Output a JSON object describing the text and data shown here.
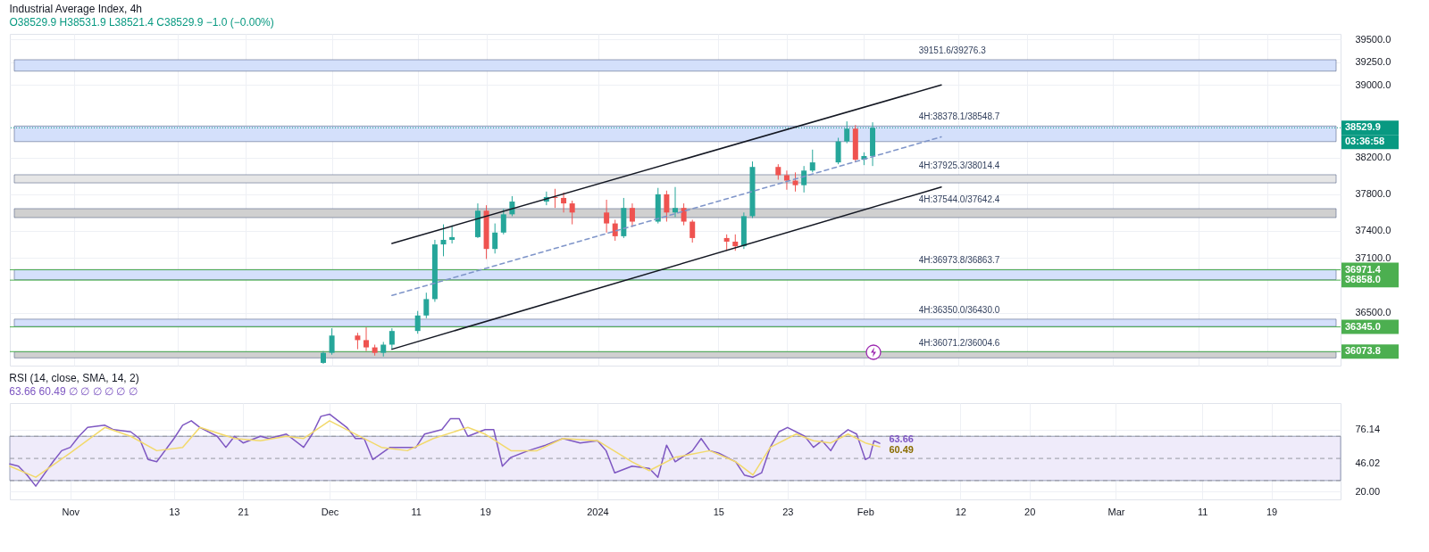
{
  "chart_data": [
    {
      "type": "candlestick",
      "title": "Industrial Average Index, 4h",
      "subtitle": "O38529.9  H38531.9  L38521.4  C38529.9  −1.0 (−0.00%)",
      "x": [
        "2023-11-30",
        "2023-12-01",
        "2023-12-04",
        "2023-12-05",
        "2023-12-06",
        "2023-12-07",
        "2023-12-08",
        "2023-12-11",
        "2023-12-12",
        "2023-12-13",
        "2023-12-14",
        "2023-12-15",
        "2023-12-18",
        "2023-12-19",
        "2023-12-20",
        "2023-12-21",
        "2023-12-22",
        "2023-12-26",
        "2023-12-27",
        "2023-12-28",
        "2023-12-29",
        "2024-01-02",
        "2024-01-03",
        "2024-01-04",
        "2024-01-05",
        "2024-01-08",
        "2024-01-09",
        "2024-01-10",
        "2024-01-11",
        "2024-01-12",
        "2024-01-16",
        "2024-01-17",
        "2024-01-18",
        "2024-01-19",
        "2024-01-22",
        "2024-01-23",
        "2024-01-24",
        "2024-01-25",
        "2024-01-26",
        "2024-01-29",
        "2024-01-30",
        "2024-01-31",
        "2024-02-01",
        "2024-02-02"
      ],
      "ohlc": [
        [
          35950,
          36080,
          35940,
          36060
        ],
        [
          36060,
          36330,
          36040,
          36250
        ],
        [
          36250,
          36280,
          36100,
          36200
        ],
        [
          36200,
          36340,
          36080,
          36120
        ],
        [
          36120,
          36150,
          36030,
          36060
        ],
        [
          36060,
          36180,
          36020,
          36150
        ],
        [
          36150,
          36330,
          36100,
          36300
        ],
        [
          36300,
          36520,
          36270,
          36470
        ],
        [
          36470,
          36720,
          36440,
          36650
        ],
        [
          36650,
          37300,
          36620,
          37250
        ],
        [
          37250,
          37470,
          37120,
          37300
        ],
        [
          37300,
          37460,
          37260,
          37330
        ],
        [
          37330,
          37700,
          37320,
          37620
        ],
        [
          37620,
          37680,
          37090,
          37200
        ],
        [
          37200,
          37480,
          37150,
          37380
        ],
        [
          37380,
          37640,
          37360,
          37580
        ],
        [
          37580,
          37780,
          37560,
          37720
        ],
        [
          37720,
          37830,
          37680,
          37770
        ],
        [
          37770,
          37860,
          37650,
          37760
        ],
        [
          37760,
          37820,
          37600,
          37700
        ],
        [
          37700,
          37730,
          37470,
          37600
        ],
        [
          37600,
          37740,
          37380,
          37480
        ],
        [
          37480,
          37520,
          37290,
          37340
        ],
        [
          37340,
          37760,
          37320,
          37650
        ],
        [
          37650,
          37700,
          37440,
          37500
        ],
        [
          37500,
          37870,
          37480,
          37800
        ],
        [
          37800,
          37840,
          37500,
          37600
        ],
        [
          37600,
          37880,
          37550,
          37650
        ],
        [
          37650,
          37700,
          37460,
          37500
        ],
        [
          37500,
          37520,
          37270,
          37320
        ],
        [
          37320,
          37360,
          37180,
          37280
        ],
        [
          37280,
          37360,
          37180,
          37230
        ],
        [
          37230,
          37600,
          37200,
          37560
        ],
        [
          37560,
          38160,
          37540,
          38100
        ],
        [
          38100,
          38130,
          37960,
          38010
        ],
        [
          38010,
          38060,
          37850,
          37950
        ],
        [
          37950,
          38040,
          37830,
          37900
        ],
        [
          37900,
          38110,
          37820,
          38060
        ],
        [
          38060,
          38290,
          38040,
          38150
        ],
        [
          38150,
          38420,
          38130,
          38380
        ],
        [
          38380,
          38600,
          38360,
          38520
        ],
        [
          38520,
          38560,
          38150,
          38180
        ],
        [
          38180,
          38260,
          38120,
          38220
        ],
        [
          38220,
          38590,
          38110,
          38529.9
        ]
      ],
      "colors": [
        "#26a69a",
        "#26a69a",
        "#ef5350",
        "#ef5350",
        "#ef5350",
        "#26a69a",
        "#26a69a",
        "#26a69a",
        "#26a69a",
        "#26a69a",
        "#26a69a",
        "#26a69a",
        "#26a69a",
        "#ef5350",
        "#26a69a",
        "#26a69a",
        "#26a69a",
        "#26a69a",
        "#ef5350",
        "#ef5350",
        "#ef5350",
        "#ef5350",
        "#ef5350",
        "#26a69a",
        "#ef5350",
        "#26a69a",
        "#ef5350",
        "#26a69a",
        "#ef5350",
        "#ef5350",
        "#ef5350",
        "#ef5350",
        "#26a69a",
        "#26a69a",
        "#ef5350",
        "#ef5350",
        "#ef5350",
        "#26a69a",
        "#26a69a",
        "#26a69a",
        "#26a69a",
        "#ef5350",
        "#26a69a",
        "#26a69a"
      ],
      "series": [
        {
          "type": "line",
          "color": "#131722",
          "line_style": "solid",
          "x": [
            "2023-12-08",
            "2024-02-10"
          ],
          "values": [
            37260,
            39000
          ]
        },
        {
          "type": "line",
          "color": "#131722",
          "line_style": "solid",
          "x": [
            "2023-12-08",
            "2024-02-10"
          ],
          "values": [
            36100,
            37880
          ]
        },
        {
          "type": "line",
          "color": "#7f95c9",
          "line_style": "dashed",
          "x": [
            "2023-12-08",
            "2024-02-10"
          ],
          "values": [
            36690,
            38430
          ]
        }
      ],
      "bands": [
        {
          "axis": "y",
          "from": 39151.6,
          "to": 39276.3,
          "label": "39151.6/39276.3",
          "color": "#d4e0fb"
        },
        {
          "axis": "y",
          "from": 38378.1,
          "to": 38548.7,
          "label": "4H:38378.1/38548.7",
          "color": "#d4e0fb"
        },
        {
          "axis": "y",
          "from": 37925.3,
          "to": 38014.4,
          "label": "4H:37925.3/38014.4",
          "color": "#e6e6e6"
        },
        {
          "axis": "y",
          "from": 37544.0,
          "to": 37642.4,
          "label": "4H:37544.0/37642.4",
          "color": "#d0d0d0"
        },
        {
          "axis": "y",
          "from": 36973.8,
          "to": 36863.7,
          "label": "4H:36973.8/36863.7",
          "color": "#d4e0fb"
        },
        {
          "axis": "y",
          "from": 36350.0,
          "to": 36430.0,
          "label": "4H:36350.0/36430.0",
          "color": "#d4e0fb"
        },
        {
          "axis": "y",
          "from": 36071.2,
          "to": 36004.6,
          "label": "4H:36071.2/36004.6",
          "color": "#d0d0d0"
        }
      ],
      "ref_lines": [
        {
          "axis": "y",
          "value": 38529.9,
          "label": "38529.9",
          "color": "#089981",
          "line_style": "dotted"
        },
        {
          "axis": "y",
          "value": 36971.4,
          "label": "36971.4",
          "color": "#4caf50"
        },
        {
          "axis": "y",
          "value": 36858.0,
          "label": "36858.0",
          "color": "#4caf50"
        },
        {
          "axis": "y",
          "value": 36345.0,
          "label": "36345.0",
          "color": "#4caf50"
        },
        {
          "axis": "y",
          "value": 36073.8,
          "label": "36073.8",
          "color": "#4caf50"
        }
      ],
      "annotations": [
        "03:36:58"
      ],
      "xlim": [
        "2023-10-25",
        "2024-03-27"
      ],
      "xticks": [
        {
          "value": "2023-11-01",
          "label": null
        },
        {
          "value": "2023-11-13",
          "label": null
        },
        {
          "value": "2023-11-21",
          "label": null
        },
        {
          "value": "2023-12-01",
          "label": null
        },
        {
          "value": "2023-12-11",
          "label": null
        },
        {
          "value": "2023-12-19",
          "label": null
        },
        {
          "value": "2024-01-01",
          "label": null
        },
        {
          "value": "2024-01-15",
          "label": null
        },
        {
          "value": "2024-01-23",
          "label": null
        },
        {
          "value": "2024-02-01",
          "label": null
        },
        {
          "value": "2024-02-12",
          "label": null
        },
        {
          "value": "2024-02-20",
          "label": null
        },
        {
          "value": "2024-03-01",
          "label": null
        },
        {
          "value": "2024-03-11",
          "label": null
        },
        {
          "value": "2024-03-19",
          "label": null
        }
      ],
      "ylim": [
        35920,
        39560
      ],
      "yticks": [
        {
          "value": 36500,
          "label": "36500.0"
        },
        {
          "value": 37100,
          "label": "37100.0"
        },
        {
          "value": 37400,
          "label": "37400.0"
        },
        {
          "value": 37800,
          "label": "37800.0"
        },
        {
          "value": 38200,
          "label": "38200.0"
        },
        {
          "value": 39000,
          "label": "39000.0"
        },
        {
          "value": 39250,
          "label": "39250.0"
        },
        {
          "value": 39500,
          "label": "39500.0"
        }
      ],
      "grid": true,
      "tick_labels": "y"
    },
    {
      "type": "line",
      "title": "RSI (14, close, SMA, 14, 2)",
      "subtitle": "63.66  60.49  ∅  ∅  ∅  ∅  ∅  ∅",
      "series": [
        {
          "color": "#7e57c2",
          "x": [
            "2023-10-25",
            "2023-10-26",
            "2023-10-27",
            "2023-10-28",
            "2023-10-30",
            "2023-10-31",
            "2023-11-01",
            "2023-11-02",
            "2023-11-03",
            "2023-11-05",
            "2023-11-06",
            "2023-11-08",
            "2023-11-09",
            "2023-11-10",
            "2023-11-11",
            "2023-11-13",
            "2023-11-14",
            "2023-11-15",
            "2023-11-16",
            "2023-11-18",
            "2023-11-19",
            "2023-11-20",
            "2023-11-21",
            "2023-11-23",
            "2023-11-24",
            "2023-11-26",
            "2023-11-28",
            "2023-11-29",
            "2023-11-30",
            "2023-12-01",
            "2023-12-03",
            "2023-12-04",
            "2023-12-05",
            "2023-12-06",
            "2023-12-08",
            "2023-12-11",
            "2023-12-12",
            "2023-12-14",
            "2023-12-15",
            "2023-12-16",
            "2023-12-17",
            "2023-12-19",
            "2023-12-20",
            "2023-12-21",
            "2023-12-22",
            "2023-12-24",
            "2023-12-26",
            "2023-12-28",
            "2023-12-30",
            "2024-01-01",
            "2024-01-02",
            "2024-01-03",
            "2024-01-05",
            "2024-01-07",
            "2024-01-08",
            "2024-01-09",
            "2024-01-10",
            "2024-01-12",
            "2024-01-13",
            "2024-01-14",
            "2024-01-15",
            "2024-01-17",
            "2024-01-18",
            "2024-01-19",
            "2024-01-20",
            "2024-01-21",
            "2024-01-22",
            "2024-01-23",
            "2024-01-25",
            "2024-01-26",
            "2024-01-27",
            "2024-01-28",
            "2024-01-29",
            "2024-01-30",
            "2024-01-31",
            "2024-02-01",
            "2024-02-01T12:00",
            "2024-02-02",
            "2024-02-02T16:00"
          ],
          "values": [
            45,
            43,
            35,
            25,
            47,
            57,
            60,
            70,
            78,
            80,
            76,
            74,
            68,
            49,
            47,
            68,
            80,
            84,
            78,
            70,
            60,
            70,
            64,
            70,
            68,
            72,
            60,
            72,
            88,
            90,
            78,
            68,
            68,
            49,
            60,
            60,
            72,
            76,
            86,
            86,
            70,
            76,
            76,
            43,
            51,
            57,
            62,
            68,
            64,
            66,
            57,
            37,
            43,
            41,
            33,
            62,
            47,
            57,
            68,
            57,
            55,
            47,
            35,
            33,
            37,
            60,
            74,
            78,
            70,
            60,
            66,
            57,
            70,
            76,
            72,
            49,
            51,
            66,
            63.66
          ],
          "value_labels": [
            null,
            null,
            null,
            null,
            null,
            null,
            null,
            null,
            null,
            null,
            null,
            null,
            null,
            null,
            null,
            null,
            null,
            null,
            null,
            null,
            null,
            null,
            null,
            null,
            null,
            null,
            null,
            null,
            null,
            null,
            null,
            null,
            null,
            null,
            null,
            null,
            null,
            null,
            null,
            null,
            null,
            null,
            null,
            null,
            null,
            null,
            null,
            null,
            null,
            null,
            null,
            null,
            null,
            null,
            null,
            null,
            null,
            null,
            null,
            null,
            null,
            null,
            null,
            null,
            null,
            null,
            null,
            null,
            null,
            null,
            null,
            null,
            null,
            null,
            null,
            null,
            null,
            null,
            "63.66"
          ]
        },
        {
          "color": "#f2d96b",
          "x": [
            "2023-10-25",
            "2023-10-28",
            "2023-11-01",
            "2023-11-05",
            "2023-11-08",
            "2023-11-11",
            "2023-11-14",
            "2023-11-16",
            "2023-11-20",
            "2023-11-23",
            "2023-11-26",
            "2023-11-28",
            "2023-12-01",
            "2023-12-03",
            "2023-12-07",
            "2023-12-10",
            "2023-12-13",
            "2023-12-17",
            "2023-12-19",
            "2023-12-22",
            "2023-12-25",
            "2023-12-28",
            "2024-01-01",
            "2024-01-05",
            "2024-01-07",
            "2024-01-10",
            "2024-01-14",
            "2024-01-17",
            "2024-01-19",
            "2024-01-21",
            "2024-01-24",
            "2024-01-26",
            "2024-01-28",
            "2024-01-30",
            "2024-02-01",
            "2024-02-02T16:00"
          ],
          "values": [
            43,
            33,
            55,
            78,
            70,
            57,
            60,
            78,
            68,
            66,
            70,
            68,
            84,
            76,
            60,
            57,
            68,
            78,
            72,
            57,
            57,
            68,
            66,
            47,
            39,
            51,
            57,
            47,
            35,
            60,
            72,
            66,
            64,
            72,
            64,
            60.49
          ],
          "value_labels": [
            null,
            null,
            null,
            null,
            null,
            null,
            null,
            null,
            null,
            null,
            null,
            null,
            null,
            null,
            null,
            null,
            null,
            null,
            null,
            null,
            null,
            null,
            null,
            null,
            null,
            null,
            null,
            null,
            null,
            null,
            null,
            null,
            null,
            null,
            null,
            "60.49"
          ]
        }
      ],
      "bands": [
        {
          "axis": "y",
          "from": 30,
          "to": 70,
          "color": "#efebfa"
        }
      ],
      "ref_lines": [
        {
          "axis": "y",
          "value": 70,
          "color": "#9598a1",
          "line_style": "dashed"
        },
        {
          "axis": "y",
          "value": 50,
          "color": "#9598a1",
          "line_style": "dashed"
        },
        {
          "axis": "y",
          "value": 30,
          "color": "#9598a1",
          "line_style": "dashed"
        }
      ],
      "xlim": [
        "2023-10-25",
        "2024-03-27"
      ],
      "xticks": [
        {
          "value": "2023-11-01",
          "label": "Nov"
        },
        {
          "value": "2023-11-13",
          "label": "13"
        },
        {
          "value": "2023-11-21",
          "label": "21"
        },
        {
          "value": "2023-12-01",
          "label": "Dec"
        },
        {
          "value": "2023-12-11",
          "label": "11"
        },
        {
          "value": "2023-12-19",
          "label": "19"
        },
        {
          "value": "2024-01-01",
          "label": "2024"
        },
        {
          "value": "2024-01-15",
          "label": "15"
        },
        {
          "value": "2024-01-23",
          "label": "23"
        },
        {
          "value": "2024-02-01",
          "label": "Feb"
        },
        {
          "value": "2024-02-12",
          "label": "12"
        },
        {
          "value": "2024-02-20",
          "label": "20"
        },
        {
          "value": "2024-03-01",
          "label": "Mar"
        },
        {
          "value": "2024-03-11",
          "label": "11"
        },
        {
          "value": "2024-03-19",
          "label": "19"
        }
      ],
      "ylim": [
        13,
        100
      ],
      "yticks": [
        {
          "value": 20,
          "label": "20.00"
        },
        {
          "value": 46.02,
          "label": "46.02"
        },
        {
          "value": 76.14,
          "label": "76.14"
        }
      ],
      "grid": true
    }
  ]
}
